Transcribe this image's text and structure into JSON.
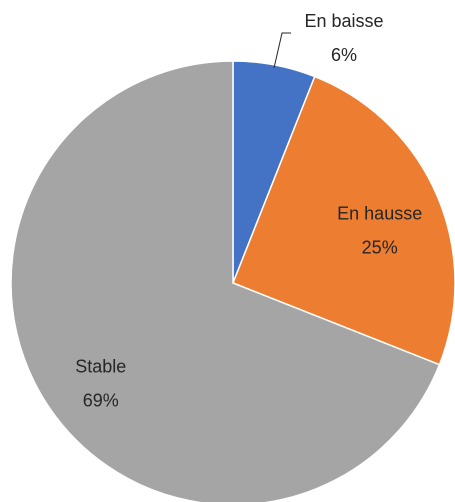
{
  "chart_data": {
    "type": "pie",
    "categories": [
      "En baisse",
      "En hausse",
      "Stable"
    ],
    "values": [
      6,
      25,
      69
    ],
    "value_labels": [
      "6%",
      "25%",
      "69%"
    ],
    "colors": [
      "#4472c4",
      "#ed7d31",
      "#a5a5a5"
    ]
  }
}
